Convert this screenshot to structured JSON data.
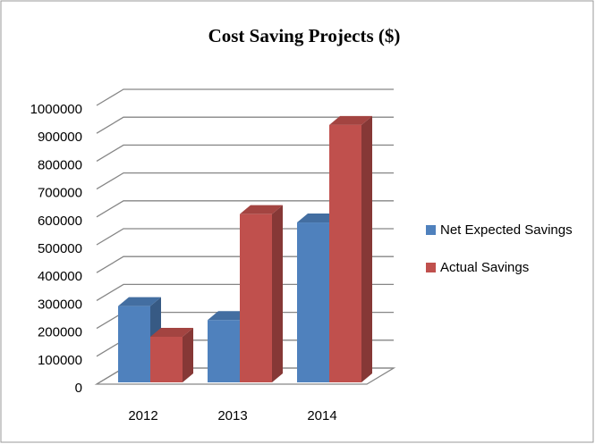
{
  "chart_data": {
    "type": "bar3d",
    "title": "Cost Saving Projects ($)",
    "categories": [
      "2012",
      "2013",
      "2014"
    ],
    "series": [
      {
        "name": "Net Expected Savings",
        "color": "#4f81bd",
        "values": [
          280000,
          230000,
          580000
        ]
      },
      {
        "name": "Actual Savings",
        "color": "#c0504d",
        "values": [
          170000,
          610000,
          930000
        ]
      }
    ],
    "ylim": [
      0,
      1000000
    ],
    "yticks": [
      0,
      100000,
      200000,
      300000,
      400000,
      500000,
      600000,
      700000,
      800000,
      900000,
      1000000
    ],
    "grid": true,
    "legend": "right"
  }
}
